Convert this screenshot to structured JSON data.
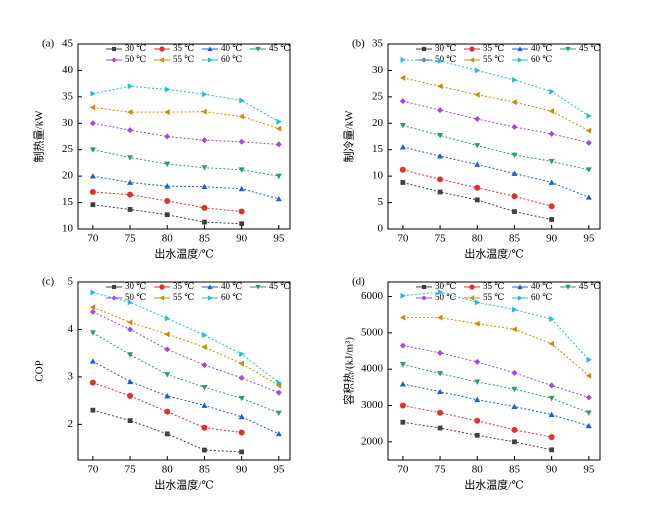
{
  "chart_data": [
    {
      "type": "line",
      "label": "(a)",
      "x_label": "出水温度/℃",
      "y_label": "制热量/kW",
      "x": [
        70,
        75,
        80,
        85,
        90,
        95
      ],
      "xlim": [
        68,
        96.5
      ],
      "xticks": [
        70,
        75,
        80,
        85,
        90,
        95
      ],
      "ylim": [
        10,
        45
      ],
      "yticks": [
        10,
        15,
        20,
        25,
        30,
        35,
        40,
        45
      ],
      "series": [
        {
          "name": "30 ℃",
          "color": "#404040",
          "marker": "square",
          "values": [
            14.6,
            13.7,
            12.7,
            11.3,
            11.0,
            null
          ]
        },
        {
          "name": "35 ℃",
          "color": "#e03030",
          "marker": "circle",
          "values": [
            17.0,
            16.5,
            15.3,
            14.0,
            13.3,
            null
          ]
        },
        {
          "name": "40 ℃",
          "color": "#1f5fd0",
          "marker": "triangle-up",
          "values": [
            20.0,
            18.8,
            18.1,
            18.0,
            17.6,
            15.7
          ]
        },
        {
          "name": "45 ℃",
          "color": "#2aa060",
          "marker": "triangle-down",
          "values": [
            25.0,
            23.5,
            22.3,
            21.6,
            21.2,
            20.0
          ]
        },
        {
          "name": "50 ℃",
          "color": "#9b4dd8",
          "marker": "diamond",
          "values": [
            30.0,
            28.7,
            27.5,
            26.8,
            26.5,
            26.0
          ]
        },
        {
          "name": "55 ℃",
          "color": "#c89000",
          "marker": "triangle-left",
          "values": [
            33.0,
            32.1,
            32.1,
            32.2,
            31.3,
            29.0
          ]
        },
        {
          "name": "60 ℃",
          "color": "#20c0d0",
          "marker": "triangle-right",
          "values": [
            35.6,
            37.0,
            36.4,
            35.5,
            34.3,
            30.3
          ]
        }
      ]
    },
    {
      "type": "line",
      "label": "(b)",
      "x_label": "出水温度/℃",
      "y_label": "制冷量/kW",
      "x": [
        70,
        75,
        80,
        85,
        90,
        95
      ],
      "xlim": [
        68,
        96.5
      ],
      "xticks": [
        70,
        75,
        80,
        85,
        90,
        95
      ],
      "ylim": [
        0,
        35
      ],
      "yticks": [
        0,
        5,
        10,
        15,
        20,
        25,
        30,
        35
      ],
      "series": [
        {
          "name": "30 ℃",
          "color": "#404040",
          "marker": "square",
          "values": [
            8.8,
            7.0,
            5.5,
            3.3,
            1.8,
            null
          ]
        },
        {
          "name": "35 ℃",
          "color": "#e03030",
          "marker": "circle",
          "values": [
            11.2,
            9.4,
            7.8,
            6.2,
            4.3,
            null
          ]
        },
        {
          "name": "40 ℃",
          "color": "#1f5fd0",
          "marker": "triangle-up",
          "values": [
            15.5,
            13.8,
            12.2,
            10.5,
            8.8,
            6.0
          ]
        },
        {
          "name": "45 ℃",
          "color": "#2aa060",
          "marker": "triangle-down",
          "values": [
            19.6,
            17.7,
            15.8,
            14.0,
            12.8,
            11.2
          ]
        },
        {
          "name": "50 ℃",
          "color": "#9b4dd8",
          "marker": "diamond",
          "values": [
            24.2,
            22.5,
            20.8,
            19.3,
            18.0,
            16.3
          ]
        },
        {
          "name": "55 ℃",
          "color": "#c89000",
          "marker": "triangle-left",
          "values": [
            28.6,
            27.0,
            25.4,
            24.0,
            22.3,
            18.6
          ]
        },
        {
          "name": "60 ℃",
          "color": "#20c0d0",
          "marker": "triangle-right",
          "values": [
            32.0,
            31.8,
            30.0,
            28.2,
            26.0,
            21.4
          ]
        }
      ]
    },
    {
      "type": "line",
      "label": "(c)",
      "x_label": "出水温度/℃",
      "y_label": "COP",
      "x": [
        70,
        75,
        80,
        85,
        90,
        95
      ],
      "xlim": [
        68,
        96.5
      ],
      "xticks": [
        70,
        75,
        80,
        85,
        90,
        95
      ],
      "ylim": [
        1.25,
        5
      ],
      "yticks": [
        2,
        3,
        4,
        5
      ],
      "series": [
        {
          "name": "30 ℃",
          "color": "#404040",
          "marker": "square",
          "values": [
            2.3,
            2.08,
            1.8,
            1.46,
            1.42,
            null
          ]
        },
        {
          "name": "35 ℃",
          "color": "#e03030",
          "marker": "circle",
          "values": [
            2.88,
            2.6,
            2.27,
            1.93,
            1.83,
            null
          ]
        },
        {
          "name": "40 ℃",
          "color": "#1f5fd0",
          "marker": "triangle-up",
          "values": [
            3.33,
            2.9,
            2.6,
            2.4,
            2.16,
            1.8
          ]
        },
        {
          "name": "45 ℃",
          "color": "#2aa060",
          "marker": "triangle-down",
          "values": [
            3.93,
            3.47,
            3.05,
            2.78,
            2.55,
            2.24
          ]
        },
        {
          "name": "50 ℃",
          "color": "#9b4dd8",
          "marker": "diamond",
          "values": [
            4.37,
            4.0,
            3.58,
            3.25,
            2.98,
            2.67
          ]
        },
        {
          "name": "55 ℃",
          "color": "#c89000",
          "marker": "triangle-left",
          "values": [
            4.47,
            4.15,
            3.9,
            3.63,
            3.28,
            2.82
          ]
        },
        {
          "name": "60 ℃",
          "color": "#20c0d0",
          "marker": "triangle-right",
          "values": [
            4.78,
            4.57,
            4.23,
            3.88,
            3.48,
            2.88
          ]
        }
      ]
    },
    {
      "type": "line",
      "label": "(d)",
      "x_label": "出水温度/℃",
      "y_label": "容积热/(kJ/m³)",
      "x": [
        70,
        75,
        80,
        85,
        90,
        95
      ],
      "xlim": [
        68,
        96.5
      ],
      "xticks": [
        70,
        75,
        80,
        85,
        90,
        95
      ],
      "ylim": [
        1500,
        6400
      ],
      "yticks": [
        2000,
        3000,
        4000,
        5000,
        6000
      ],
      "series": [
        {
          "name": "30 ℃",
          "color": "#404040",
          "marker": "square",
          "values": [
            2540,
            2380,
            2180,
            2000,
            1780,
            null
          ]
        },
        {
          "name": "35 ℃",
          "color": "#e03030",
          "marker": "circle",
          "values": [
            3000,
            2800,
            2580,
            2330,
            2130,
            null
          ]
        },
        {
          "name": "40 ℃",
          "color": "#1f5fd0",
          "marker": "triangle-up",
          "values": [
            3590,
            3380,
            3160,
            2970,
            2750,
            2440
          ]
        },
        {
          "name": "45 ℃",
          "color": "#2aa060",
          "marker": "triangle-down",
          "values": [
            4130,
            3880,
            3650,
            3450,
            3200,
            2800
          ]
        },
        {
          "name": "50 ℃",
          "color": "#9b4dd8",
          "marker": "diamond",
          "values": [
            4650,
            4450,
            4200,
            3900,
            3550,
            3220
          ]
        },
        {
          "name": "55 ℃",
          "color": "#c89000",
          "marker": "triangle-left",
          "values": [
            5420,
            5420,
            5250,
            5100,
            4700,
            3820
          ]
        },
        {
          "name": "60 ℃",
          "color": "#20c0d0",
          "marker": "triangle-right",
          "values": [
            6020,
            6120,
            5840,
            5640,
            5380,
            4260
          ]
        }
      ]
    }
  ]
}
